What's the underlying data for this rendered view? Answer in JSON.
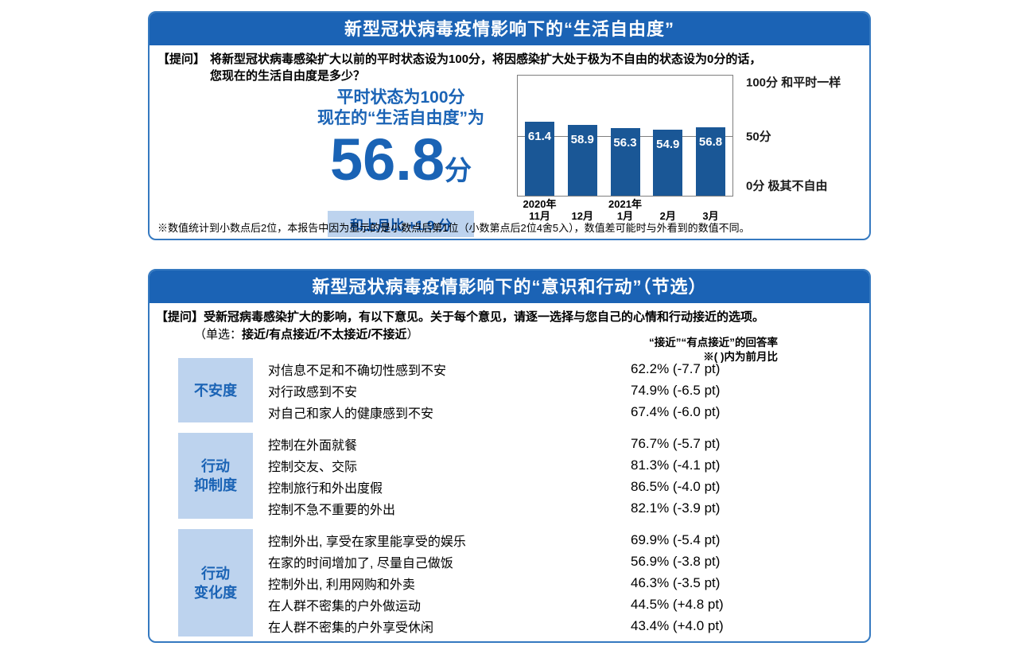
{
  "panel_freedom": {
    "question_label": "【提问】",
    "question_lines": [
      "将新型冠状病毒感染扩大以前的平时状态设为100分，将因感染扩大处于极为不自由的状态设为0分的话，",
      "您现在的生活自由度是多少？"
    ],
    "headline_line1": "平时状态为100分",
    "headline_line2": "现在的“生活自由度”为",
    "score": "56.8",
    "score_unit": "分",
    "mom_label": "和上月比 +1.9 分",
    "footnote": "※数值统计到小数点后2位，本报告中因为显示的是小数点后第1位（小数第点后2位4舍5入），数值差可能时与外看到的数值不同。"
  },
  "panel_actions": {
    "question_label": "【提问】",
    "question_text": "受新冠病毒感染扩大的影响，有以下意见。关于每个意见，请逐一选择与您自己的心情和行动接近的选项。",
    "option_prefix": "（单选：",
    "option_bold": "接近/有点接近/不太接近/不接近",
    "option_suffix": "）",
    "column_note_line1": "“接近”“有点接近”的回答率",
    "column_note_line2": "※( )内为前月比"
  },
  "chart_data": [
    {
      "type": "bar",
      "title": "新型冠状病毒疫情影响下的“生活自由度”",
      "categories": [
        "2020年11月",
        "12月",
        "2021年1月",
        "2月",
        "3月"
      ],
      "categories_display": [
        [
          "2020年",
          "11月"
        ],
        [
          "",
          "12月"
        ],
        [
          "2021年",
          "1月"
        ],
        [
          "",
          "2月"
        ],
        [
          "",
          "3月"
        ]
      ],
      "values": [
        61.4,
        58.9,
        56.3,
        54.9,
        56.8
      ],
      "ylim": [
        0,
        100
      ],
      "gridline_at": 50,
      "bar_color": "#1a5796",
      "axis_labels": [
        {
          "value": 100,
          "text": "100分 和平时一样"
        },
        {
          "value": 50,
          "text": "50分"
        },
        {
          "value": 0,
          "text": "0分 极其不自由"
        }
      ]
    },
    {
      "type": "table",
      "title": "新型冠状病毒疫情影响下的“意识和行动”（节选）",
      "groups": [
        {
          "label_lines": [
            "不安度"
          ],
          "items": [
            {
              "text": "对信息不足和不确切性感到不安",
              "rate": "62.2%",
              "change": "(-7.7 pt)"
            },
            {
              "text": "对行政感到不安",
              "rate": "74.9%",
              "change": "(-6.5 pt)"
            },
            {
              "text": "对自己和家人的健康感到不安",
              "rate": "67.4%",
              "change": "(-6.0 pt)"
            }
          ]
        },
        {
          "label_lines": [
            "行动",
            "抑制度"
          ],
          "items": [
            {
              "text": "控制在外面就餐",
              "rate": "76.7%",
              "change": "(-5.7 pt)"
            },
            {
              "text": "控制交友、交际",
              "rate": "81.3%",
              "change": "(-4.1 pt)"
            },
            {
              "text": "控制旅行和外出度假",
              "rate": "86.5%",
              "change": "(-4.0 pt)"
            },
            {
              "text": "控制不急不重要的外出",
              "rate": "82.1%",
              "change": "(-3.9 pt)"
            }
          ]
        },
        {
          "label_lines": [
            "行动",
            "变化度"
          ],
          "items": [
            {
              "text": "控制外出, 享受在家里能享受的娱乐",
              "rate": "69.9%",
              "change": "(-5.4 pt)"
            },
            {
              "text": "在家的时间增加了, 尽量自己做饭",
              "rate": "56.9%",
              "change": "(-3.8 pt)"
            },
            {
              "text": "控制外出, 利用网购和外卖",
              "rate": "46.3%",
              "change": "(-3.5 pt)"
            },
            {
              "text": "在人群不密集的户外做运动",
              "rate": "44.5%",
              "change": "(+4.8 pt)"
            },
            {
              "text": "在人群不密集的户外享受休闲",
              "rate": "43.4%",
              "change": "(+4.0 pt)"
            }
          ]
        }
      ]
    }
  ],
  "colors": {
    "header_blue": "#1b63b5",
    "bar_blue": "#1a5796",
    "light_blue": "#bdd3ee",
    "accent_text_blue": "#1a63b5",
    "panel_border_blue": "#3579c0"
  }
}
